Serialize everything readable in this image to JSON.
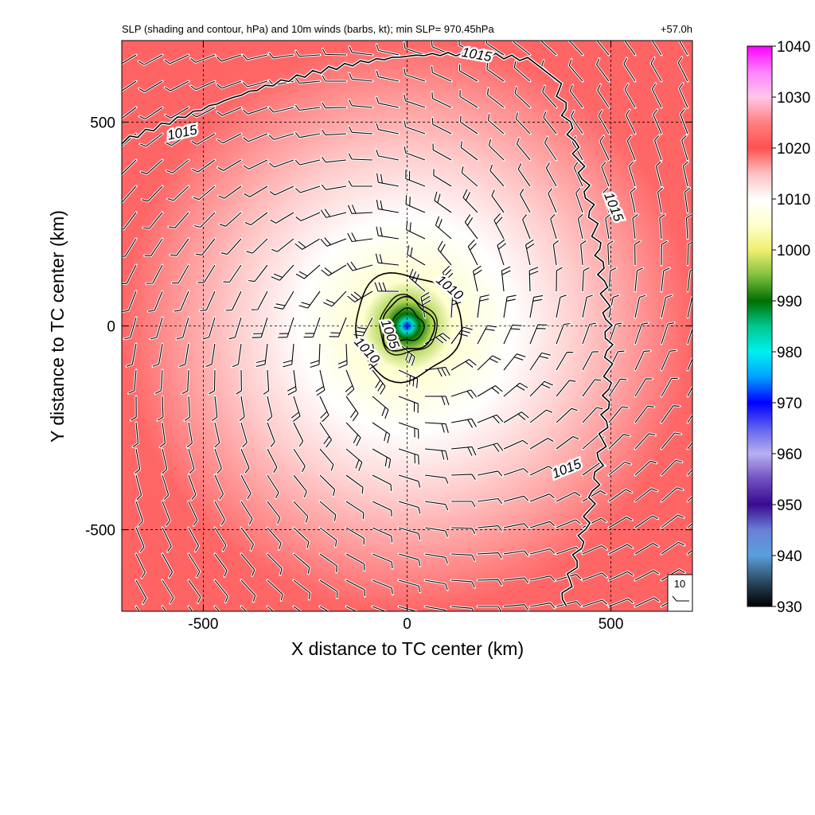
{
  "chart_data": {
    "type": "heatmap",
    "title": "SLP (shading and contour, hPa) and 10m winds (barbs, kt); min SLP= 970.45hPa",
    "time_label": "+57.0h",
    "xlabel": "X distance to TC center (km)",
    "ylabel": "Y distance to TC center (km)",
    "xlim": [
      -700,
      700
    ],
    "ylim": [
      -700,
      700
    ],
    "x_ticks": [
      -500,
      0,
      500
    ],
    "y_ticks": [
      -500,
      0,
      500
    ],
    "x_tick_labels": [
      "-500",
      "0",
      "500"
    ],
    "y_tick_labels": [
      "-500",
      "0",
      "500"
    ],
    "grid": true,
    "min_slp_hpa": 970.45,
    "center_km": [
      0,
      0
    ],
    "contours": [
      {
        "level": 1005,
        "label": "1005",
        "radius_km": 110
      },
      {
        "level": 1010,
        "label": "1010",
        "radius_km": 260
      },
      {
        "level": 1015,
        "label": "1015",
        "label_count": 4
      }
    ],
    "colorbar": {
      "min": 930,
      "max": 1040,
      "tick_values": [
        1040,
        1030,
        1020,
        1010,
        1000,
        990,
        980,
        970,
        960,
        950,
        940,
        930
      ],
      "tick_labels": [
        "1040",
        "1030",
        "1020",
        "1010",
        "1000",
        "990",
        "980",
        "970",
        "960",
        "950",
        "940",
        "930"
      ],
      "stops": [
        {
          "value": 930,
          "color": "#000000"
        },
        {
          "value": 935,
          "color": "#2c4a64"
        },
        {
          "value": 940,
          "color": "#5aa0dc"
        },
        {
          "value": 945,
          "color": "#6a80d8"
        },
        {
          "value": 950,
          "color": "#3a0a90"
        },
        {
          "value": 955,
          "color": "#7050c0"
        },
        {
          "value": 960,
          "color": "#b8b0f0"
        },
        {
          "value": 965,
          "color": "#6060f0"
        },
        {
          "value": 970,
          "color": "#0000ff"
        },
        {
          "value": 975,
          "color": "#00a0ff"
        },
        {
          "value": 980,
          "color": "#00f0f0"
        },
        {
          "value": 985,
          "color": "#00c890"
        },
        {
          "value": 990,
          "color": "#007000"
        },
        {
          "value": 995,
          "color": "#80c040"
        },
        {
          "value": 1000,
          "color": "#f0f070"
        },
        {
          "value": 1005,
          "color": "#ffffd0"
        },
        {
          "value": 1010,
          "color": "#ffffff"
        },
        {
          "value": 1015,
          "color": "#ffc0c0"
        },
        {
          "value": 1020,
          "color": "#ff5050"
        },
        {
          "value": 1025,
          "color": "#ff8080"
        },
        {
          "value": 1030,
          "color": "#ffc8e8"
        },
        {
          "value": 1035,
          "color": "#ff80ff"
        },
        {
          "value": 1040,
          "color": "#ff00ff"
        }
      ]
    },
    "wind_reference": {
      "label": "10",
      "units": "kt"
    }
  }
}
